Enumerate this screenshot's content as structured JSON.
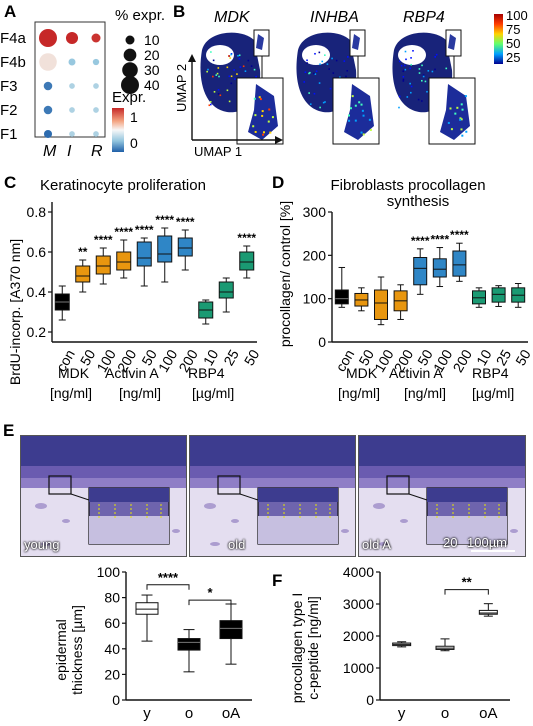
{
  "panels": {
    "A": {
      "letter": "A",
      "rows": [
        "F4a",
        "F4b",
        "F3",
        "F2",
        "F1"
      ],
      "cols": [
        "M",
        "I",
        "R"
      ],
      "size_legend_title": "% expr.",
      "size_legend_values": [
        "10",
        "20",
        "30",
        "40"
      ],
      "color_legend_title": "Expr.",
      "color_legend_ticks": [
        "1",
        "0"
      ],
      "dot_data": [
        {
          "row": "F4a",
          "col": "M",
          "pct": 40,
          "expr": 1.0
        },
        {
          "row": "F4a",
          "col": "I",
          "pct": 18,
          "expr": 1.0
        },
        {
          "row": "F4a",
          "col": "R",
          "pct": 10,
          "expr": 0.95
        },
        {
          "row": "F4b",
          "col": "M",
          "pct": 38,
          "expr": 0.1
        },
        {
          "row": "F4b",
          "col": "I",
          "pct": 6,
          "expr": -0.4
        },
        {
          "row": "F4b",
          "col": "R",
          "pct": 5,
          "expr": -0.4
        },
        {
          "row": "F3",
          "col": "M",
          "pct": 9,
          "expr": -1.0
        },
        {
          "row": "F3",
          "col": "I",
          "pct": 4,
          "expr": -0.3
        },
        {
          "row": "F3",
          "col": "R",
          "pct": 4,
          "expr": -0.3
        },
        {
          "row": "F2",
          "col": "M",
          "pct": 9,
          "expr": -1.0
        },
        {
          "row": "F2",
          "col": "I",
          "pct": 4,
          "expr": -0.3
        },
        {
          "row": "F2",
          "col": "R",
          "pct": 4,
          "expr": -0.3
        },
        {
          "row": "F1",
          "col": "M",
          "pct": 8,
          "expr": -1.1
        },
        {
          "row": "F1",
          "col": "I",
          "pct": 4,
          "expr": -0.3
        },
        {
          "row": "F1",
          "col": "R",
          "pct": 4,
          "expr": -0.3
        }
      ]
    },
    "B": {
      "letter": "B",
      "genes": [
        "MDK",
        "INHBA",
        "RBP4"
      ],
      "axis_x": "UMAP 1",
      "axis_y": "UMAP 2",
      "colorbar_ticks": [
        "100",
        "75",
        "50",
        "25"
      ]
    },
    "C": {
      "letter": "C",
      "title": "Keratinocyte proliferation",
      "ylabel": "BrdU-incorp. [A370 nm]",
      "yticks": [
        "0.2",
        "0.4",
        "0.6",
        "0.8"
      ],
      "groups": [
        {
          "name": "MDK",
          "unit": "[ng/ml]"
        },
        {
          "name": "Activin A",
          "unit": "[ng/ml]"
        },
        {
          "name": "RBP4",
          "unit": "[µg/ml]"
        }
      ],
      "colors": {
        "con": "#000000",
        "MDK": "#e8960f",
        "Activin A": "#2f86c6",
        "RBP4": "#1a9a73"
      }
    },
    "D": {
      "letter": "D",
      "title_line1": "Fibroblasts procollagen",
      "title_line2": "synthesis",
      "ylabel": "procollagen/ control [%]",
      "yticks": [
        "0",
        "100",
        "200",
        "300"
      ],
      "groups": [
        {
          "name": "MDK",
          "unit": "[ng/ml]"
        },
        {
          "name": "Activin A",
          "unit": "[ng/ml]"
        },
        {
          "name": "RBP4",
          "unit": "[µg/ml]"
        }
      ]
    },
    "E": {
      "letter": "E",
      "photos": [
        "young",
        "old",
        "old A"
      ],
      "scale_label": "100µm",
      "inset_scale_label": "20",
      "ylabel_line1": "epidermal",
      "ylabel_line2": "thickness [µm]",
      "yticks": [
        "0",
        "20",
        "40",
        "60",
        "80",
        "100"
      ],
      "xticks": [
        "y",
        "o",
        "oA"
      ]
    },
    "F": {
      "letter": "F",
      "ylabel_line1": "procollagen type I",
      "ylabel_line2": "c-peptide [ng/ml]",
      "yticks": [
        "0",
        "1000",
        "2000",
        "3000",
        "4000"
      ],
      "xticks": [
        "y",
        "o",
        "oA"
      ]
    }
  },
  "chart_data": [
    {
      "id": "C",
      "type": "box",
      "title": "Keratinocyte proliferation",
      "ylabel": "BrdU-incorp. [A370 nm]",
      "ylim": [
        0.15,
        0.85
      ],
      "categories": [
        "con",
        "50",
        "100",
        "200",
        "50",
        "100",
        "200",
        "10",
        "25",
        "50"
      ],
      "group": [
        "con",
        "MDK",
        "MDK",
        "MDK",
        "Activin A",
        "Activin A",
        "Activin A",
        "RBP4",
        "RBP4",
        "RBP4"
      ],
      "boxes": [
        {
          "min": 0.26,
          "q1": 0.31,
          "median": 0.35,
          "q3": 0.39,
          "max": 0.43
        },
        {
          "min": 0.4,
          "q1": 0.45,
          "median": 0.48,
          "q3": 0.53,
          "max": 0.56
        },
        {
          "min": 0.44,
          "q1": 0.49,
          "median": 0.53,
          "q3": 0.58,
          "max": 0.62
        },
        {
          "min": 0.47,
          "q1": 0.51,
          "median": 0.55,
          "q3": 0.6,
          "max": 0.66
        },
        {
          "min": 0.43,
          "q1": 0.53,
          "median": 0.57,
          "q3": 0.65,
          "max": 0.67
        },
        {
          "min": 0.45,
          "q1": 0.55,
          "median": 0.59,
          "q3": 0.68,
          "max": 0.72
        },
        {
          "min": 0.51,
          "q1": 0.58,
          "median": 0.62,
          "q3": 0.67,
          "max": 0.71
        },
        {
          "min": 0.24,
          "q1": 0.27,
          "median": 0.31,
          "q3": 0.35,
          "max": 0.36
        },
        {
          "min": 0.3,
          "q1": 0.37,
          "median": 0.4,
          "q3": 0.45,
          "max": 0.47
        },
        {
          "min": 0.47,
          "q1": 0.51,
          "median": 0.55,
          "q3": 0.6,
          "max": 0.63
        }
      ],
      "significance": [
        "",
        "**",
        "****",
        "****",
        "****",
        "****",
        "****",
        "",
        "",
        "****"
      ]
    },
    {
      "id": "D",
      "type": "box",
      "title": "Fibroblasts procollagen synthesis",
      "ylabel": "procollagen/ control [%]",
      "ylim": [
        0,
        300
      ],
      "categories": [
        "con",
        "50",
        "100",
        "200",
        "50",
        "100",
        "200",
        "10",
        "25",
        "50"
      ],
      "group": [
        "con",
        "MDK",
        "MDK",
        "MDK",
        "Activin A",
        "Activin A",
        "Activin A",
        "RBP4",
        "RBP4",
        "RBP4"
      ],
      "boxes": [
        {
          "min": 80,
          "q1": 88,
          "median": 100,
          "q3": 120,
          "max": 172
        },
        {
          "min": 72,
          "q1": 83,
          "median": 97,
          "q3": 112,
          "max": 125
        },
        {
          "min": 40,
          "q1": 52,
          "median": 90,
          "q3": 120,
          "max": 150
        },
        {
          "min": 52,
          "q1": 72,
          "median": 95,
          "q3": 118,
          "max": 132
        },
        {
          "min": 110,
          "q1": 132,
          "median": 170,
          "q3": 195,
          "max": 215
        },
        {
          "min": 128,
          "q1": 150,
          "median": 168,
          "q3": 192,
          "max": 218
        },
        {
          "min": 140,
          "q1": 152,
          "median": 178,
          "q3": 210,
          "max": 228
        },
        {
          "min": 80,
          "q1": 88,
          "median": 102,
          "q3": 118,
          "max": 125
        },
        {
          "min": 82,
          "q1": 92,
          "median": 110,
          "q3": 125,
          "max": 130
        },
        {
          "min": 80,
          "q1": 92,
          "median": 108,
          "q3": 125,
          "max": 135
        }
      ],
      "significance": [
        "",
        "",
        "",
        "",
        "****",
        "****",
        "****",
        "",
        "",
        ""
      ]
    },
    {
      "id": "E",
      "type": "box",
      "ylabel": "epidermal thickness [µm]",
      "ylim": [
        0,
        100
      ],
      "categories": [
        "y",
        "o",
        "oA"
      ],
      "boxes": [
        {
          "min": 46,
          "q1": 67,
          "median": 71,
          "q3": 76,
          "max": 82
        },
        {
          "min": 22,
          "q1": 39,
          "median": 45,
          "q3": 48,
          "max": 55
        },
        {
          "min": 28,
          "q1": 48,
          "median": 56,
          "q3": 62,
          "max": 75
        }
      ],
      "significance_brackets": [
        {
          "from": "y",
          "to": "o",
          "label": "****"
        },
        {
          "from": "o",
          "to": "oA",
          "label": "*"
        }
      ]
    },
    {
      "id": "F",
      "type": "box",
      "ylabel": "procollagen type I c-peptide [ng/ml]",
      "ylim": [
        0,
        4000
      ],
      "categories": [
        "y",
        "o",
        "oA"
      ],
      "boxes": [
        {
          "min": 1660,
          "q1": 1700,
          "median": 1740,
          "q3": 1780,
          "max": 1820
        },
        {
          "min": 1540,
          "q1": 1580,
          "median": 1620,
          "q3": 1680,
          "max": 1910
        },
        {
          "min": 2620,
          "q1": 2680,
          "median": 2720,
          "q3": 2800,
          "max": 3010
        }
      ],
      "significance_brackets": [
        {
          "from": "o",
          "to": "oA",
          "label": "**"
        }
      ]
    }
  ]
}
